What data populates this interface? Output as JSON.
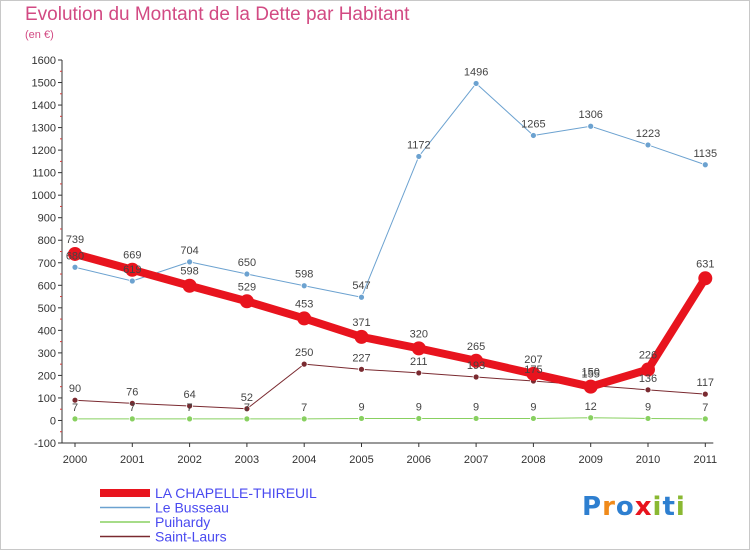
{
  "title": "Evolution du Montant de la Dette par Habitant",
  "subtitle": "(en €)",
  "logo_text": "Proxiti",
  "chart_data": {
    "type": "line",
    "title": "Evolution du Montant de la Dette par Habitant",
    "subtitle": "(en €)",
    "xlabel": "",
    "ylabel": "",
    "x": [
      "2000",
      "2001",
      "2002",
      "2003",
      "2004",
      "2005",
      "2006",
      "2007",
      "2008",
      "2009",
      "2010",
      "2011"
    ],
    "ylim": [
      -100,
      1600
    ],
    "yticks": [
      -100,
      0,
      100,
      200,
      300,
      400,
      500,
      600,
      700,
      800,
      900,
      1000,
      1100,
      1200,
      1300,
      1400,
      1500,
      1600
    ],
    "grid": false,
    "legend_position": "bottom-left",
    "series": [
      {
        "name": "LA CHAPELLE-THIREUIL",
        "color": "#e8141e",
        "values": [
          739,
          669,
          598,
          529,
          453,
          371,
          320,
          265,
          207,
          150,
          226,
          631
        ]
      },
      {
        "name": "Le Busseau",
        "color": "#6ca2d0",
        "values": [
          680,
          619,
          704,
          650,
          598,
          547,
          1172,
          1496,
          1265,
          1306,
          1223,
          1135
        ]
      },
      {
        "name": "Puihardy",
        "color": "#88d060",
        "values": [
          7,
          7,
          7,
          7,
          7,
          9,
          9,
          9,
          9,
          12,
          9,
          7
        ]
      },
      {
        "name": "Saint-Laurs",
        "color": "#7a2a30",
        "values": [
          90,
          76,
          64,
          52,
          250,
          227,
          211,
          193,
          175,
          155,
          136,
          117
        ]
      }
    ]
  }
}
